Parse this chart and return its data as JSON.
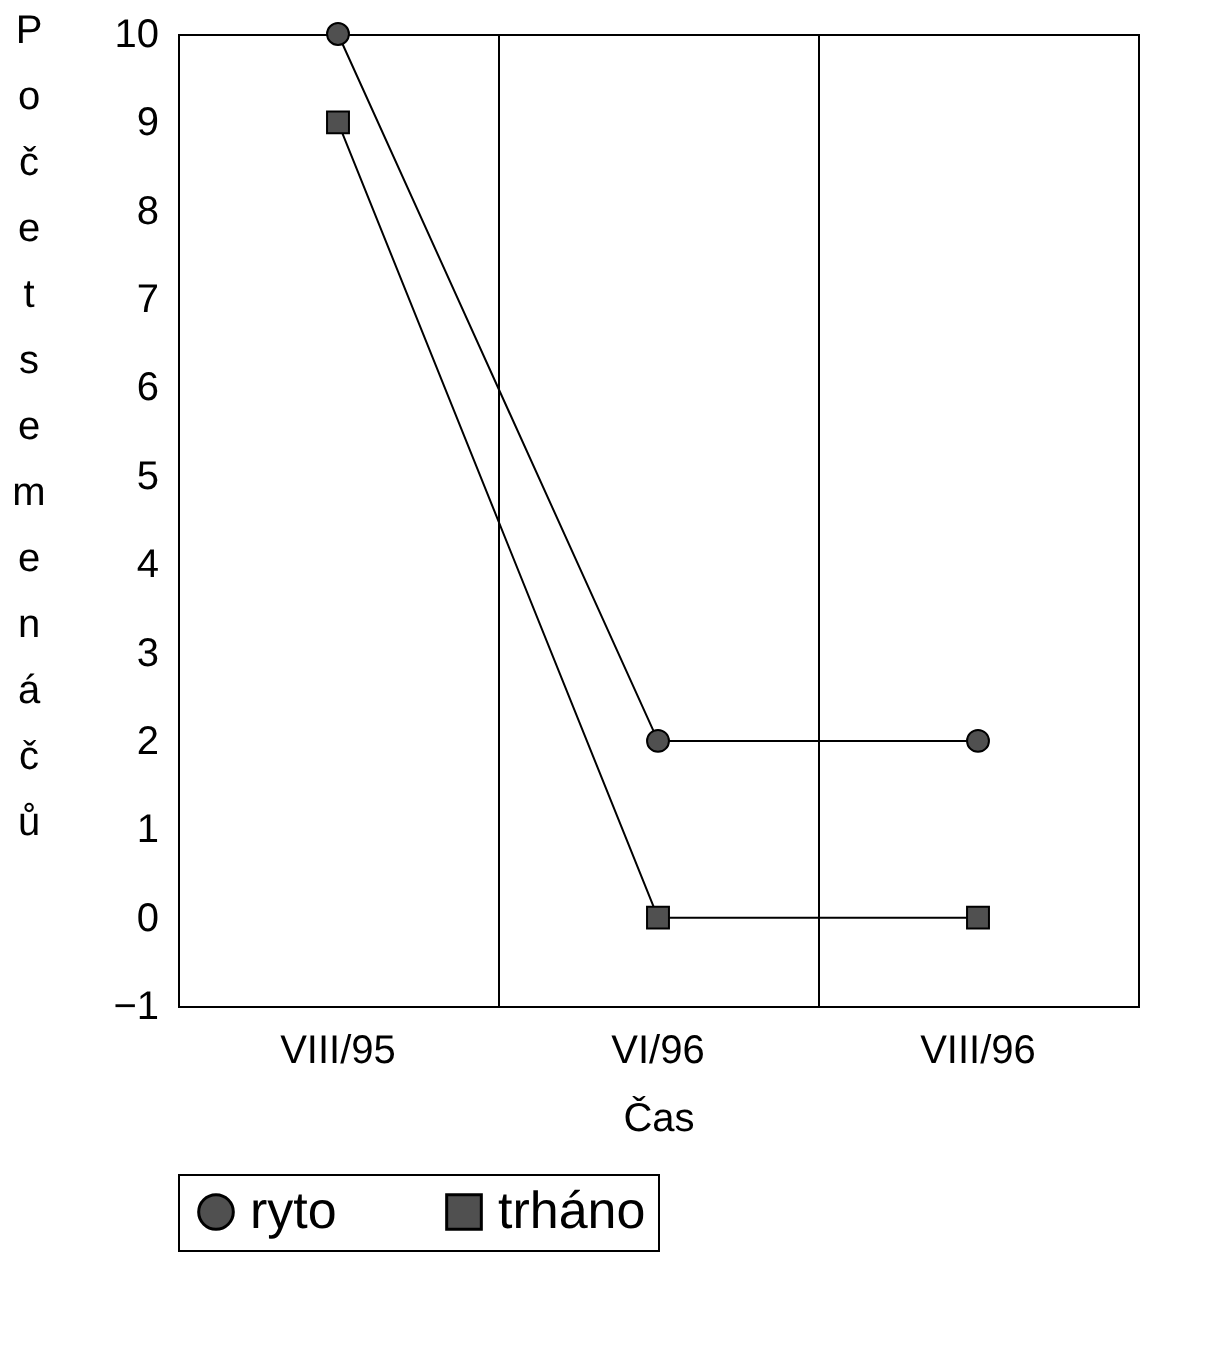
{
  "chart_data": {
    "type": "line",
    "xlabel": "Čas",
    "ylabel": "Počet semenáčů",
    "categories": [
      "VIII/95",
      "VI/96",
      "VIII/96"
    ],
    "series": [
      {
        "name": "ryto",
        "color": "#505050",
        "marker": "circle",
        "values": [
          10,
          2,
          2
        ]
      },
      {
        "name": "trháno",
        "color": "#505050",
        "marker": "square",
        "values": [
          9,
          0,
          0
        ]
      }
    ],
    "ylim": [
      -1,
      10
    ],
    "yticks": [
      -1,
      0,
      1,
      2,
      3,
      4,
      5,
      6,
      7,
      8,
      9,
      10
    ],
    "grid": "x",
    "legend": "bottom",
    "line_style": "solid"
  }
}
